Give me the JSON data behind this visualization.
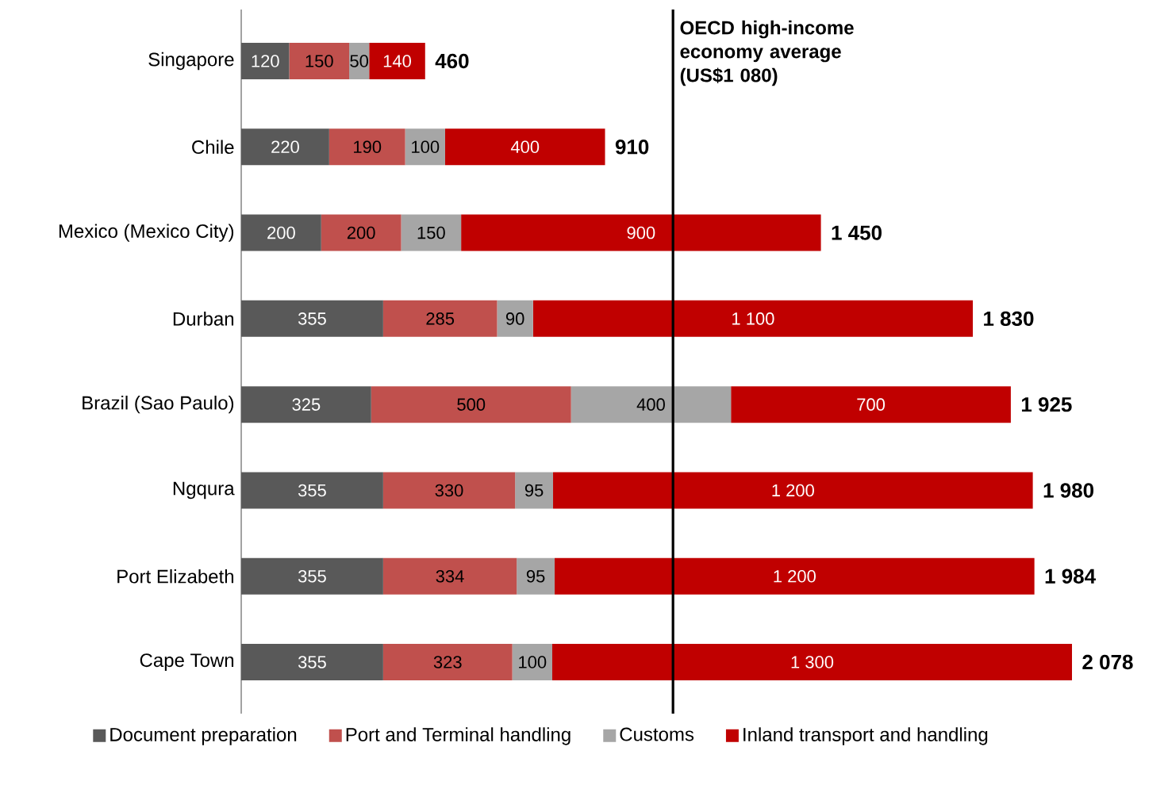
{
  "chart_data": {
    "type": "bar",
    "orientation": "horizontal",
    "stacked": true,
    "legend": "bottom",
    "categories": [
      "Singapore",
      "Chile",
      "Mexico (Mexico City)",
      "Durban",
      "Brazil (Sao Paulo)",
      "Ngqura",
      "Port Elizabeth",
      "Cape Town"
    ],
    "series": [
      {
        "name": "Document preparation",
        "color": "#595959",
        "values": [
          120,
          220,
          200,
          355,
          325,
          355,
          355,
          355
        ],
        "value_labels": [
          "120",
          "220",
          "200",
          "355",
          "325",
          "355",
          "355",
          "355"
        ]
      },
      {
        "name": "Port and Terminal handling",
        "color": "#c0504d",
        "values": [
          150,
          190,
          200,
          285,
          500,
          330,
          334,
          323
        ],
        "value_labels": [
          "150",
          "190",
          "200",
          "285",
          "500",
          "330",
          "334",
          "323"
        ]
      },
      {
        "name": "Customs",
        "color": "#a6a6a6",
        "values": [
          50,
          100,
          150,
          90,
          400,
          95,
          95,
          100
        ],
        "value_labels": [
          "50",
          "100",
          "150",
          "90",
          "400",
          "95",
          "95",
          "100"
        ]
      },
      {
        "name": "Inland transport and handling",
        "color": "#c00000",
        "values": [
          140,
          400,
          900,
          1100,
          700,
          1200,
          1200,
          1300
        ],
        "value_labels": [
          "140",
          "400",
          "900",
          "1 100",
          "700",
          "1 200",
          "1 200",
          "1 300"
        ]
      }
    ],
    "totals": [
      "460",
      "910",
      "1 450",
      "1 830",
      "1 925",
      "1 980",
      "1 984",
      "2 078"
    ],
    "ref_lines": [
      {
        "axis": "x",
        "value": 1080,
        "label": "OECD high-income economy average (US$1 080)",
        "color": "#000000"
      }
    ]
  }
}
